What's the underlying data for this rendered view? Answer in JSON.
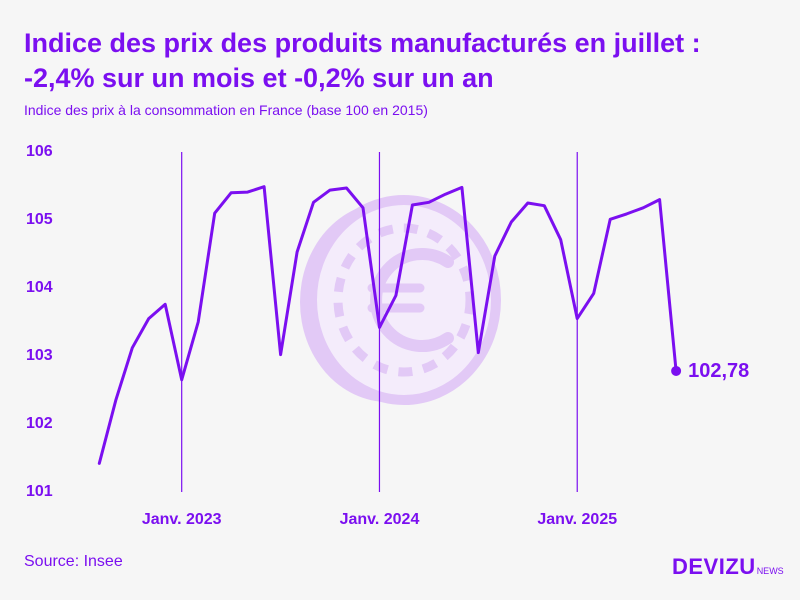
{
  "header": {
    "title_line1": "Indice des prix des produits manufacturés en juillet :",
    "title_line2": "-2,4% sur un mois et -0,2% sur un an",
    "subtitle": "Indice des prix à la consommation en France (base 100 en 2015)"
  },
  "footer": {
    "source": "Source: Insee",
    "logo_main": "DEVIZU",
    "logo_sub": "NEWS"
  },
  "colors": {
    "accent": "#7b0ff0",
    "watermark": "#e2c9f6",
    "background": "#f6f6f6"
  },
  "chart_data": {
    "type": "line",
    "title": "Indice des prix des produits manufacturés en juillet : -2,4% sur un mois et -0,2% sur un an",
    "ylabel": "Indice des prix à la consommation en France (base 100 en 2015)",
    "ylim": [
      101,
      106
    ],
    "yticks": [
      "101",
      "102",
      "103",
      "104",
      "105",
      "106"
    ],
    "xlim": [
      -0.2,
      35.6
    ],
    "xticks": [
      {
        "label": "Janv. 2023",
        "index": 5
      },
      {
        "label": "Janv. 2024",
        "index": 17
      },
      {
        "label": "Janv. 2025",
        "index": 29
      }
    ],
    "x_start": "2022-08",
    "series": [
      {
        "name": "Produits manufacturés",
        "values": [
          101.42,
          102.35,
          103.12,
          103.55,
          103.76,
          102.65,
          103.5,
          105.1,
          105.4,
          105.41,
          105.49,
          103.02,
          104.53,
          105.26,
          105.44,
          105.47,
          105.18,
          103.42,
          103.89,
          105.22,
          105.26,
          105.38,
          105.48,
          103.05,
          104.47,
          104.97,
          105.25,
          105.21,
          104.71,
          103.55,
          103.92,
          105.01,
          105.09,
          105.18,
          105.3,
          102.78
        ]
      }
    ],
    "last_label": "102,78",
    "grid": false
  }
}
